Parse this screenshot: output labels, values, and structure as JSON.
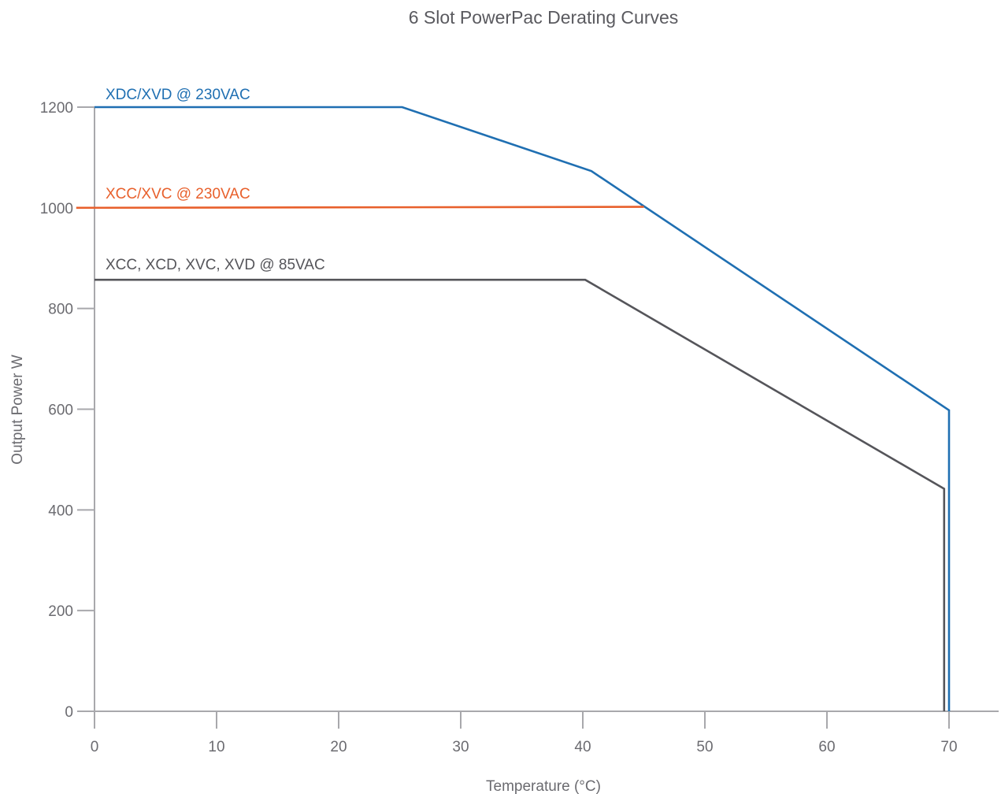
{
  "chart_data": {
    "type": "line",
    "title": "6 Slot PowerPac Derating Curves",
    "xlabel": "Temperature (°C)",
    "ylabel": "Output Power W",
    "xlim": [
      0,
      72
    ],
    "ylim": [
      0,
      1200
    ],
    "xticks": [
      0,
      10,
      20,
      30,
      40,
      50,
      60,
      70
    ],
    "yticks": [
      0,
      200,
      400,
      600,
      800,
      1000,
      1200
    ],
    "grid": false,
    "series": [
      {
        "name": "XDC/XVD @ 230VAC",
        "color": "#1f6fb2",
        "points": [
          [
            0,
            1200
          ],
          [
            25.2,
            1200
          ],
          [
            40.7,
            1073
          ],
          [
            70,
            598
          ],
          [
            70,
            0
          ]
        ]
      },
      {
        "name": "XCC/XVC @ 230VAC",
        "color": "#e8602c",
        "points": [
          [
            -1.5,
            1000
          ],
          [
            45,
            1002
          ]
        ]
      },
      {
        "name": "XCC, XCD, XVC, XVD @ 85VAC",
        "color": "#55555a",
        "points": [
          [
            0,
            857
          ],
          [
            40.2,
            857
          ],
          [
            69.6,
            442
          ],
          [
            69.6,
            0
          ]
        ]
      }
    ]
  }
}
